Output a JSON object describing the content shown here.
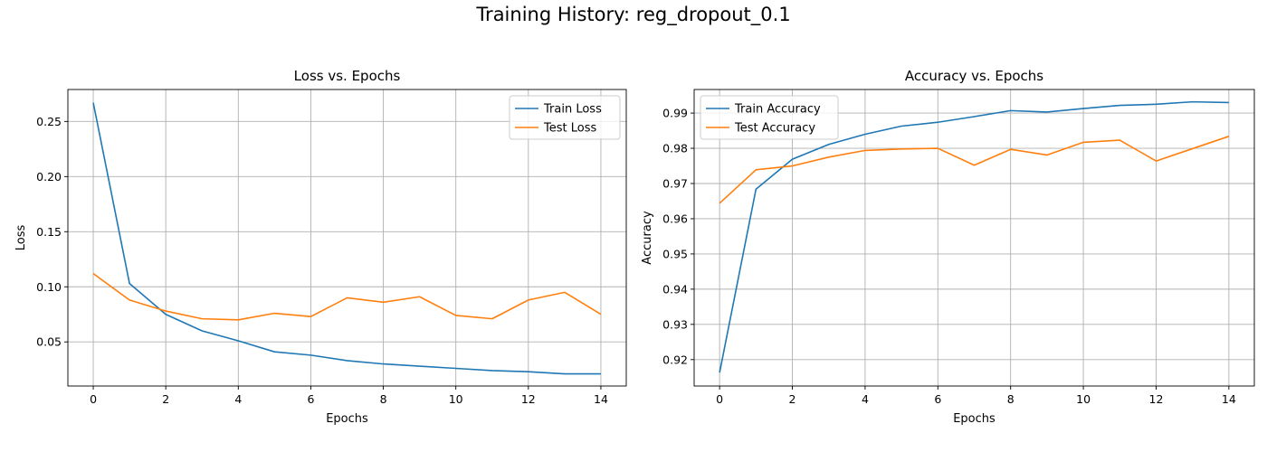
{
  "figure": {
    "suptitle": "Training History: reg_dropout_0.1"
  },
  "colors": {
    "train": "#1f77b4",
    "test": "#ff7f0e",
    "grid": "#b0b0b0"
  },
  "chart_data": [
    {
      "type": "line",
      "title": "Loss vs. Epochs",
      "xlabel": "Epochs",
      "ylabel": "Loss",
      "xlim": [
        -0.7,
        14.7
      ],
      "ylim": [
        0.01,
        0.279
      ],
      "xticks": [
        0,
        2,
        4,
        6,
        8,
        10,
        12,
        14
      ],
      "yticks": [
        0.05,
        0.1,
        0.15,
        0.2,
        0.25
      ],
      "ytick_labels": [
        "0.05",
        "0.10",
        "0.15",
        "0.20",
        "0.25"
      ],
      "grid": true,
      "legend_position": "upper right",
      "x": [
        0,
        1,
        2,
        3,
        4,
        5,
        6,
        7,
        8,
        9,
        10,
        11,
        12,
        13,
        14
      ],
      "series": [
        {
          "name": "Train Loss",
          "color": "#1f77b4",
          "values": [
            0.267,
            0.103,
            0.075,
            0.06,
            0.051,
            0.041,
            0.038,
            0.033,
            0.03,
            0.028,
            0.026,
            0.024,
            0.023,
            0.021,
            0.021
          ]
        },
        {
          "name": "Test Loss",
          "color": "#ff7f0e",
          "values": [
            0.112,
            0.088,
            0.078,
            0.071,
            0.07,
            0.076,
            0.073,
            0.09,
            0.086,
            0.091,
            0.074,
            0.071,
            0.088,
            0.095,
            0.075
          ]
        }
      ]
    },
    {
      "type": "line",
      "title": "Accuracy vs. Epochs",
      "xlabel": "Epochs",
      "ylabel": "Accuracy",
      "xlim": [
        -0.7,
        14.7
      ],
      "ylim": [
        0.9125,
        0.9967
      ],
      "xticks": [
        0,
        2,
        4,
        6,
        8,
        10,
        12,
        14
      ],
      "yticks": [
        0.92,
        0.93,
        0.94,
        0.95,
        0.96,
        0.97,
        0.98,
        0.99
      ],
      "ytick_labels": [
        "0.92",
        "0.93",
        "0.94",
        "0.95",
        "0.96",
        "0.97",
        "0.98",
        "0.99"
      ],
      "grid": true,
      "legend_position": "upper left",
      "x": [
        0,
        1,
        2,
        3,
        4,
        5,
        6,
        7,
        8,
        9,
        10,
        11,
        12,
        13,
        14
      ],
      "series": [
        {
          "name": "Train Accuracy",
          "color": "#1f77b4",
          "values": [
            0.9163,
            0.9684,
            0.9769,
            0.9811,
            0.984,
            0.9863,
            0.9874,
            0.989,
            0.9907,
            0.9903,
            0.9913,
            0.9922,
            0.9925,
            0.9932,
            0.993
          ]
        },
        {
          "name": "Test Accuracy",
          "color": "#ff7f0e",
          "values": [
            0.9644,
            0.9739,
            0.975,
            0.9775,
            0.9794,
            0.9798,
            0.98,
            0.9752,
            0.9797,
            0.9781,
            0.9817,
            0.9823,
            0.9764,
            0.9799,
            0.9834
          ]
        }
      ]
    }
  ]
}
